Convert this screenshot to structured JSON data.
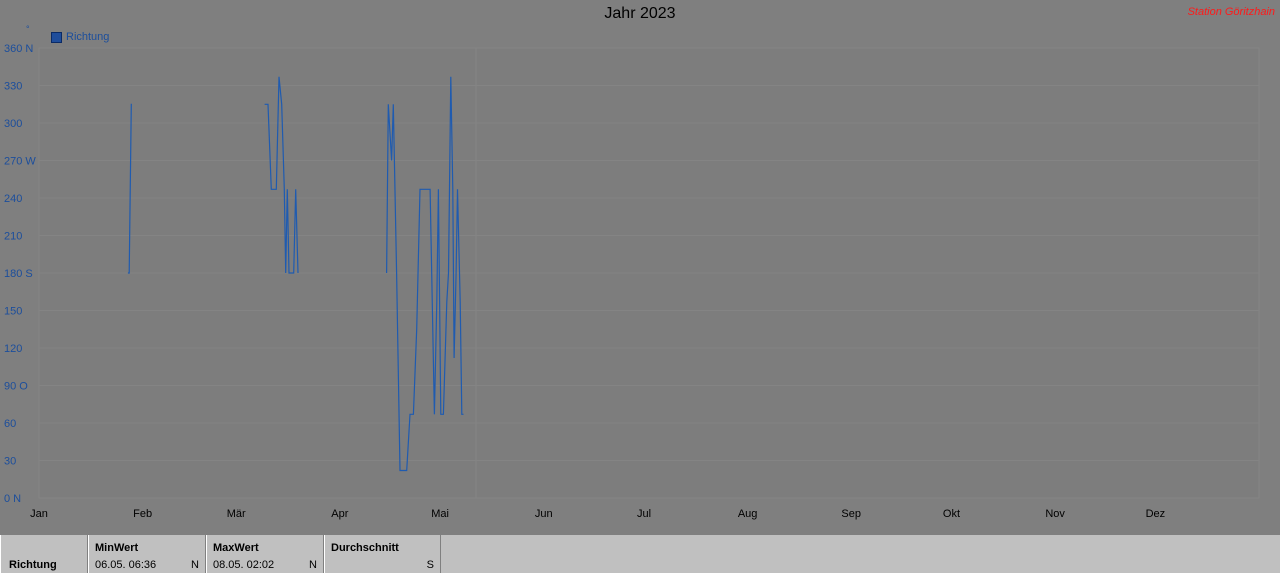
{
  "title": "Jahr 2023",
  "station": "Station Göritzhain",
  "unit_symbol": "°",
  "legend": "Richtung",
  "footer": {
    "row_label": "Richtung",
    "min": {
      "label": "MinWert",
      "value": "06.05.  06:36",
      "dir": "N"
    },
    "max": {
      "label": "MaxWert",
      "value": "08.05.  02:02",
      "dir": "N"
    },
    "avg": {
      "label": "Durchschnitt",
      "value": "",
      "dir": "S"
    }
  },
  "colors": {
    "series": "#1f5bb0",
    "axis_text": "#1c4e9c",
    "station": "#ff1a1a"
  },
  "chart_data": {
    "type": "line",
    "ylim": [
      0,
      360
    ],
    "yticks": [
      {
        "value": 360,
        "label": "360 N"
      },
      {
        "value": 330,
        "label": "330"
      },
      {
        "value": 300,
        "label": "300"
      },
      {
        "value": 270,
        "label": "270 W"
      },
      {
        "value": 240,
        "label": "240"
      },
      {
        "value": 210,
        "label": "210"
      },
      {
        "value": 180,
        "label": "180 S"
      },
      {
        "value": 150,
        "label": "150"
      },
      {
        "value": 120,
        "label": "120"
      },
      {
        "value": 90,
        "label": "90  O"
      },
      {
        "value": 60,
        "label": "60"
      },
      {
        "value": 30,
        "label": "30"
      },
      {
        "value": 0,
        "label": "0   N"
      }
    ],
    "xticks": [
      "Jan",
      "Feb",
      "Mär",
      "Apr",
      "Mai",
      "Jun",
      "Jul",
      "Aug",
      "Sep",
      "Okt",
      "Nov",
      "Dez"
    ],
    "series": [
      {
        "name": "Richtung",
        "segments": [
          [
            [
              26.6,
              180
            ],
            [
              27.0,
              180
            ],
            [
              27.6,
              315
            ],
            [
              27.8,
              315
            ]
          ],
          [
            [
              67.5,
              315
            ],
            [
              68.5,
              315
            ],
            [
              69.5,
              247
            ],
            [
              71.0,
              247
            ],
            [
              71.8,
              337
            ],
            [
              72.6,
              315
            ],
            [
              73.4,
              247
            ],
            [
              73.8,
              180
            ],
            [
              74.3,
              247
            ],
            [
              74.8,
              180
            ],
            [
              75.5,
              180
            ],
            [
              76.2,
              180
            ],
            [
              76.8,
              247
            ],
            [
              77.5,
              180
            ]
          ],
          [
            [
              104.0,
              180
            ],
            [
              104.5,
              315
            ],
            [
              105.5,
              270
            ],
            [
              106.0,
              315
            ],
            [
              107.0,
              180
            ],
            [
              108.0,
              22
            ],
            [
              109.0,
              22
            ],
            [
              110.0,
              22
            ],
            [
              111.0,
              67
            ],
            [
              112.0,
              67
            ],
            [
              113.0,
              135
            ],
            [
              114.0,
              247
            ],
            [
              116.0,
              247
            ],
            [
              117.0,
              247
            ],
            [
              117.5,
              180
            ],
            [
              118.3,
              67
            ],
            [
              119.0,
              157
            ],
            [
              119.5,
              247
            ],
            [
              120.2,
              67
            ],
            [
              121.0,
              67
            ],
            [
              122.0,
              157
            ],
            [
              122.5,
              180
            ],
            [
              123.2,
              337
            ],
            [
              123.8,
              247
            ],
            [
              124.2,
              112
            ],
            [
              124.8,
              180
            ],
            [
              125.2,
              247
            ],
            [
              126.0,
              157
            ],
            [
              126.5,
              67
            ],
            [
              127.0,
              67
            ]
          ]
        ]
      }
    ]
  }
}
